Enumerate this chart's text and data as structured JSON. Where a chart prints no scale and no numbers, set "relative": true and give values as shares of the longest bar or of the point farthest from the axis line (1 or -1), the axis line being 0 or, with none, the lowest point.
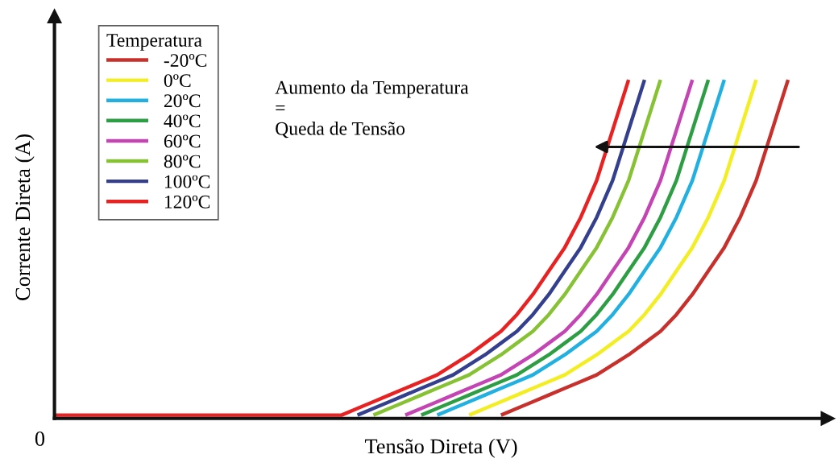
{
  "chart_data": {
    "type": "line",
    "relative": true,
    "xlabel": "Tensão Direta (V)",
    "ylabel": "Corrente Direta (A)",
    "legend_title": "Temperatura",
    "legend": "top left",
    "marker": "none",
    "line_style": "solid",
    "annotations": [
      "Aumento da Temperatura\n=\nQueda de Tensão",
      "0"
    ],
    "categories": [
      null,
      null,
      null,
      null,
      null,
      null,
      null,
      null,
      null,
      null,
      null,
      null,
      null,
      null,
      null,
      null,
      null,
      null,
      null,
      null,
      null,
      null,
      null,
      null,
      null,
      null,
      null,
      null,
      null,
      null,
      null,
      null,
      null,
      null,
      null,
      null,
      null,
      null,
      null,
      null,
      null,
      null,
      null,
      null,
      null,
      null,
      null,
      null,
      null
    ],
    "series": [
      {
        "name": "-20ºC",
        "color": "#c8302c",
        "values": [
          null,
          null,
          null,
          null,
          null,
          null,
          null,
          null,
          null,
          null,
          null,
          null,
          null,
          null,
          null,
          null,
          null,
          null,
          null,
          null,
          null,
          null,
          null,
          null,
          null,
          null,
          null,
          null,
          0,
          0.02,
          0.04,
          0.06,
          0.08,
          0.1,
          0.12,
          0.15,
          0.18,
          0.215,
          0.25,
          0.3,
          0.36,
          0.43,
          0.5,
          0.59,
          0.7,
          0.85,
          1.0,
          null,
          null
        ]
      },
      {
        "name": "0ºC",
        "color": "#f2ee22",
        "values": [
          null,
          null,
          null,
          null,
          null,
          null,
          null,
          null,
          null,
          null,
          null,
          null,
          null,
          null,
          null,
          null,
          null,
          null,
          null,
          null,
          null,
          null,
          null,
          null,
          null,
          null,
          0,
          0.02,
          0.04,
          0.06,
          0.08,
          0.1,
          0.12,
          0.15,
          0.18,
          0.215,
          0.25,
          0.3,
          0.36,
          0.43,
          0.5,
          0.59,
          0.7,
          0.85,
          1.0,
          null,
          null,
          null,
          null
        ]
      },
      {
        "name": "20ºC",
        "color": "#22b0e0",
        "values": [
          null,
          null,
          null,
          null,
          null,
          null,
          null,
          null,
          null,
          null,
          null,
          null,
          null,
          null,
          null,
          null,
          null,
          null,
          null,
          null,
          null,
          null,
          null,
          null,
          0,
          0.02,
          0.04,
          0.06,
          0.08,
          0.1,
          0.12,
          0.15,
          0.18,
          0.215,
          0.25,
          0.3,
          0.36,
          0.43,
          0.5,
          0.59,
          0.7,
          0.85,
          1.0,
          null,
          null,
          null,
          null,
          null,
          null
        ]
      },
      {
        "name": "40ºC",
        "color": "#2e9e44",
        "values": [
          null,
          null,
          null,
          null,
          null,
          null,
          null,
          null,
          null,
          null,
          null,
          null,
          null,
          null,
          null,
          null,
          null,
          null,
          null,
          null,
          null,
          null,
          null,
          0,
          0.02,
          0.04,
          0.06,
          0.08,
          0.1,
          0.12,
          0.15,
          0.18,
          0.215,
          0.25,
          0.3,
          0.36,
          0.43,
          0.5,
          0.59,
          0.7,
          0.85,
          1.0,
          null,
          null,
          null,
          null,
          null,
          null,
          null
        ]
      },
      {
        "name": "60ºC",
        "color": "#c444b4",
        "values": [
          null,
          null,
          null,
          null,
          null,
          null,
          null,
          null,
          null,
          null,
          null,
          null,
          null,
          null,
          null,
          null,
          null,
          null,
          null,
          null,
          null,
          null,
          0,
          0.02,
          0.04,
          0.06,
          0.08,
          0.1,
          0.12,
          0.15,
          0.18,
          0.215,
          0.25,
          0.3,
          0.36,
          0.43,
          0.5,
          0.59,
          0.7,
          0.85,
          1.0,
          null,
          null,
          null,
          null,
          null,
          null,
          null,
          null
        ]
      },
      {
        "name": "80ºC",
        "color": "#86c234",
        "values": [
          null,
          null,
          null,
          null,
          null,
          null,
          null,
          null,
          null,
          null,
          null,
          null,
          null,
          null,
          null,
          null,
          null,
          null,
          null,
          null,
          0,
          0.02,
          0.04,
          0.06,
          0.08,
          0.1,
          0.12,
          0.15,
          0.18,
          0.215,
          0.25,
          0.3,
          0.36,
          0.43,
          0.5,
          0.59,
          0.7,
          0.85,
          1.0,
          null,
          null,
          null,
          null,
          null,
          null,
          null,
          null,
          null,
          null
        ]
      },
      {
        "name": "100ºC",
        "color": "#34408e",
        "values": [
          null,
          null,
          null,
          null,
          null,
          null,
          null,
          null,
          null,
          null,
          null,
          null,
          null,
          null,
          null,
          null,
          null,
          null,
          null,
          0,
          0.02,
          0.04,
          0.06,
          0.08,
          0.1,
          0.12,
          0.15,
          0.18,
          0.215,
          0.25,
          0.3,
          0.36,
          0.43,
          0.5,
          0.59,
          0.7,
          0.85,
          1.0,
          null,
          null,
          null,
          null,
          null,
          null,
          null,
          null,
          null,
          null,
          null
        ]
      },
      {
        "name": "120ºC",
        "color": "#e82222",
        "values": [
          0,
          0,
          0,
          0,
          0,
          0,
          0,
          0,
          0,
          0,
          0,
          0,
          0,
          0,
          0,
          0,
          0,
          0,
          0,
          0.02,
          0.04,
          0.06,
          0.08,
          0.1,
          0.12,
          0.15,
          0.18,
          0.215,
          0.25,
          0.3,
          0.36,
          0.43,
          0.5,
          0.59,
          0.7,
          0.85,
          1.0,
          null,
          null,
          null,
          null,
          null,
          null,
          null,
          null,
          null,
          null,
          null,
          null
        ]
      }
    ]
  }
}
